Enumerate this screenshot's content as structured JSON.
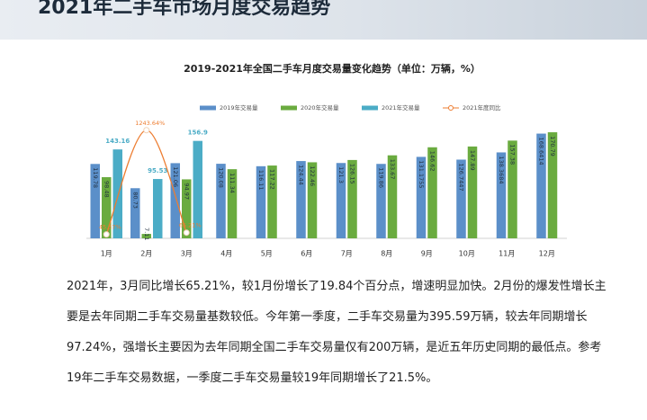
{
  "header": {
    "title": "2021年二手车市场月度交易趋势"
  },
  "chart_data": {
    "type": "bar",
    "title": "2019-2021年全国二手车月度交易量变化趋势（单位：万辆，%）",
    "categories": [
      "1月",
      "2月",
      "3月",
      "4月",
      "5月",
      "6月",
      "7月",
      "8月",
      "9月",
      "10月",
      "11月",
      "12月"
    ],
    "series": [
      {
        "name": "2019年交易量",
        "color": "#5b8fc9",
        "values": [
          119.78,
          80.73,
          121.06,
          120.08,
          116.11,
          124.44,
          121.3,
          119.86,
          131.1755,
          126.7447,
          138.3684,
          168.6414
        ]
      },
      {
        "name": "2020年交易量",
        "color": "#6aab3f",
        "values": [
          98.48,
          7.11,
          94.97,
          111.34,
          117.22,
          122.46,
          126.15,
          133.67,
          146.62,
          147.89,
          157.38,
          170.79
        ]
      },
      {
        "name": "2021年交易量",
        "color": "#4bacc6",
        "values": [
          143.16,
          95.53,
          156.9,
          null,
          null,
          null,
          null,
          null,
          null,
          null,
          null,
          null
        ]
      },
      {
        "name": "2021年度同比",
        "type": "line",
        "axis": "y2",
        "color": "#ed7d31",
        "values": [
          45.37,
          1243.64,
          65.21,
          null,
          null,
          null,
          null,
          null,
          null,
          null,
          null,
          null
        ],
        "value_labels": [
          "45.37%",
          "1243.64%",
          "65.21%",
          null,
          null,
          null,
          null,
          null,
          null,
          null,
          null,
          null
        ]
      }
    ],
    "ylim": [
      0,
      210
    ],
    "y2lim": [
      0,
      1500
    ],
    "legend": "top"
  },
  "body": {
    "paragraph": "2021年，3月同比增长65.21%，较1月份增长了19.84个百分点，增速明显加快。2月份的爆发性增长主要是去年同期二手车交易量基数较低。今年第一季度，二手车交易量为395.59万辆，较去年同期增长97.24%，强增长主要因为去年同期全国二手车交易量仅有200万辆，是近五年历史同期的最低点。参考19年二手车交易数据，一季度二手车交易量较19年同期增长了21.5%。"
  }
}
